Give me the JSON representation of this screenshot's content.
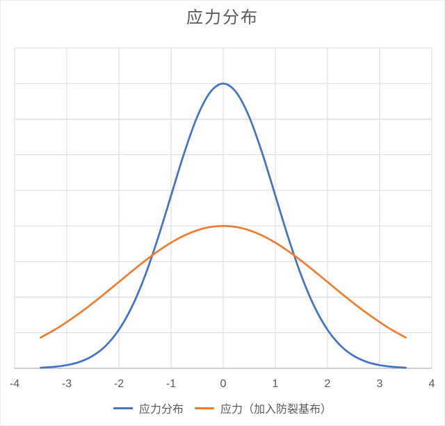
{
  "chart_data": {
    "type": "line",
    "title": "应力分布",
    "xlabel": "",
    "ylabel": "",
    "xlim": [
      -4,
      4
    ],
    "ylim": [
      0,
      9
    ],
    "x_ticks": [
      -4,
      -3,
      -2,
      -1,
      0,
      1,
      2,
      3,
      4
    ],
    "y_grid_step": 1,
    "y_tick_labels_visible": false,
    "grid": true,
    "legend_position": "bottom",
    "x": [
      -3.5,
      -3.25,
      -3.0,
      -2.75,
      -2.5,
      -2.25,
      -2.0,
      -1.75,
      -1.5,
      -1.25,
      -1.0,
      -0.75,
      -0.5,
      -0.25,
      0,
      0.25,
      0.5,
      0.75,
      1.0,
      1.25,
      1.5,
      1.75,
      2.0,
      2.25,
      2.5,
      2.75,
      3.0,
      3.25,
      3.5
    ],
    "series": [
      {
        "name": "应力分布",
        "color": "#4472C4",
        "values": [
          0.018,
          0.041,
          0.089,
          0.182,
          0.352,
          0.636,
          1.083,
          1.73,
          2.597,
          3.663,
          4.852,
          6.039,
          7.06,
          7.754,
          8.0,
          7.754,
          7.06,
          6.039,
          4.852,
          3.663,
          2.597,
          1.73,
          1.083,
          0.636,
          0.352,
          0.182,
          0.089,
          0.041,
          0.018
        ]
      },
      {
        "name": "应力（加入防裂基布）",
        "color": "#ED7D31",
        "values": [
          0.865,
          1.067,
          1.299,
          1.554,
          1.831,
          2.124,
          2.426,
          2.727,
          3.019,
          3.29,
          3.53,
          3.728,
          3.877,
          3.969,
          4.0,
          3.969,
          3.877,
          3.728,
          3.53,
          3.29,
          3.019,
          2.727,
          2.426,
          2.124,
          1.831,
          1.554,
          1.299,
          1.067,
          0.865
        ]
      }
    ],
    "colors": {
      "grid": "#d9d9d9",
      "axis": "#bfbfbf",
      "text": "#595959",
      "title": "#595959",
      "background": "#ffffff"
    }
  }
}
